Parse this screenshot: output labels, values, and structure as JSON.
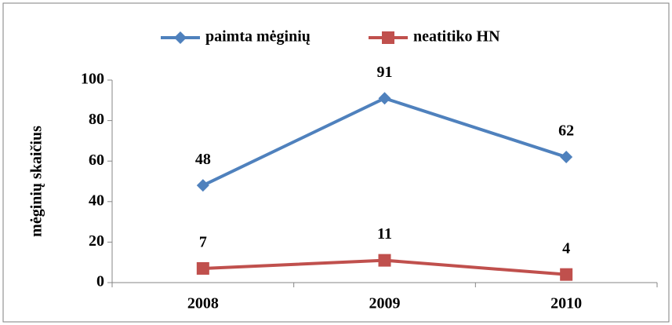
{
  "chart_data": {
    "type": "line",
    "y_label": "mėginių skaičius",
    "categories": [
      "2008",
      "2009",
      "2010"
    ],
    "series": [
      {
        "name": "paimta mėginių",
        "color": "#4f81bd",
        "marker": "diamond",
        "values": [
          48,
          91,
          62
        ]
      },
      {
        "name": "neatitiko HN",
        "color": "#c0504d",
        "marker": "square",
        "values": [
          7,
          11,
          4
        ]
      }
    ],
    "ylim": [
      0,
      100
    ],
    "yticks": [
      0,
      20,
      40,
      60,
      80,
      100
    ],
    "legend": "top",
    "grid": false
  }
}
